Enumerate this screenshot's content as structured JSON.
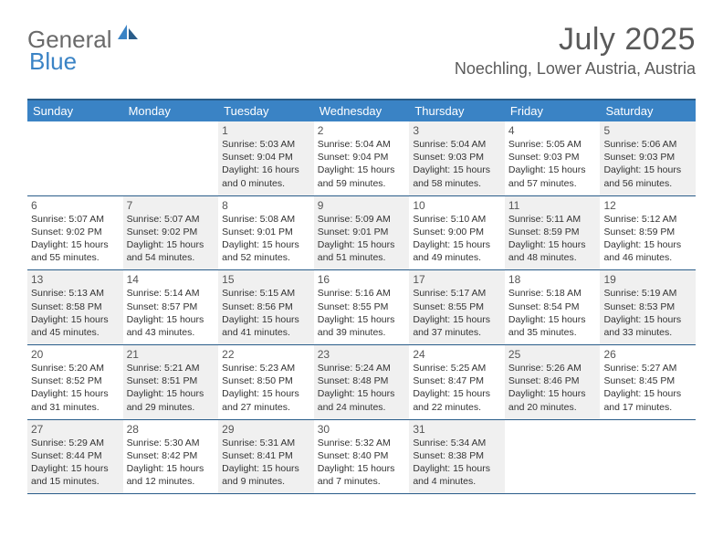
{
  "logo": {
    "text1": "General",
    "text2": "Blue"
  },
  "title": "July 2025",
  "location": "Noechling, Lower Austria, Austria",
  "colors": {
    "header_bg": "#3a83c5",
    "header_border": "#2a5d8a",
    "shaded_bg": "#f0f0f0",
    "logo_gray": "#6a6a6a",
    "logo_blue": "#3a83c5",
    "text_gray": "#5a5a5a"
  },
  "dayNames": [
    "Sunday",
    "Monday",
    "Tuesday",
    "Wednesday",
    "Thursday",
    "Friday",
    "Saturday"
  ],
  "weeks": [
    [
      {
        "empty": true
      },
      {
        "empty": true
      },
      {
        "n": "1",
        "shaded": true,
        "sr": "Sunrise: 5:03 AM",
        "ss": "Sunset: 9:04 PM",
        "dl": "Daylight: 16 hours and 0 minutes."
      },
      {
        "n": "2",
        "sr": "Sunrise: 5:04 AM",
        "ss": "Sunset: 9:04 PM",
        "dl": "Daylight: 15 hours and 59 minutes."
      },
      {
        "n": "3",
        "shaded": true,
        "sr": "Sunrise: 5:04 AM",
        "ss": "Sunset: 9:03 PM",
        "dl": "Daylight: 15 hours and 58 minutes."
      },
      {
        "n": "4",
        "sr": "Sunrise: 5:05 AM",
        "ss": "Sunset: 9:03 PM",
        "dl": "Daylight: 15 hours and 57 minutes."
      },
      {
        "n": "5",
        "shaded": true,
        "sr": "Sunrise: 5:06 AM",
        "ss": "Sunset: 9:03 PM",
        "dl": "Daylight: 15 hours and 56 minutes."
      }
    ],
    [
      {
        "n": "6",
        "sr": "Sunrise: 5:07 AM",
        "ss": "Sunset: 9:02 PM",
        "dl": "Daylight: 15 hours and 55 minutes."
      },
      {
        "n": "7",
        "shaded": true,
        "sr": "Sunrise: 5:07 AM",
        "ss": "Sunset: 9:02 PM",
        "dl": "Daylight: 15 hours and 54 minutes."
      },
      {
        "n": "8",
        "sr": "Sunrise: 5:08 AM",
        "ss": "Sunset: 9:01 PM",
        "dl": "Daylight: 15 hours and 52 minutes."
      },
      {
        "n": "9",
        "shaded": true,
        "sr": "Sunrise: 5:09 AM",
        "ss": "Sunset: 9:01 PM",
        "dl": "Daylight: 15 hours and 51 minutes."
      },
      {
        "n": "10",
        "sr": "Sunrise: 5:10 AM",
        "ss": "Sunset: 9:00 PM",
        "dl": "Daylight: 15 hours and 49 minutes."
      },
      {
        "n": "11",
        "shaded": true,
        "sr": "Sunrise: 5:11 AM",
        "ss": "Sunset: 8:59 PM",
        "dl": "Daylight: 15 hours and 48 minutes."
      },
      {
        "n": "12",
        "sr": "Sunrise: 5:12 AM",
        "ss": "Sunset: 8:59 PM",
        "dl": "Daylight: 15 hours and 46 minutes."
      }
    ],
    [
      {
        "n": "13",
        "shaded": true,
        "sr": "Sunrise: 5:13 AM",
        "ss": "Sunset: 8:58 PM",
        "dl": "Daylight: 15 hours and 45 minutes."
      },
      {
        "n": "14",
        "sr": "Sunrise: 5:14 AM",
        "ss": "Sunset: 8:57 PM",
        "dl": "Daylight: 15 hours and 43 minutes."
      },
      {
        "n": "15",
        "shaded": true,
        "sr": "Sunrise: 5:15 AM",
        "ss": "Sunset: 8:56 PM",
        "dl": "Daylight: 15 hours and 41 minutes."
      },
      {
        "n": "16",
        "sr": "Sunrise: 5:16 AM",
        "ss": "Sunset: 8:55 PM",
        "dl": "Daylight: 15 hours and 39 minutes."
      },
      {
        "n": "17",
        "shaded": true,
        "sr": "Sunrise: 5:17 AM",
        "ss": "Sunset: 8:55 PM",
        "dl": "Daylight: 15 hours and 37 minutes."
      },
      {
        "n": "18",
        "sr": "Sunrise: 5:18 AM",
        "ss": "Sunset: 8:54 PM",
        "dl": "Daylight: 15 hours and 35 minutes."
      },
      {
        "n": "19",
        "shaded": true,
        "sr": "Sunrise: 5:19 AM",
        "ss": "Sunset: 8:53 PM",
        "dl": "Daylight: 15 hours and 33 minutes."
      }
    ],
    [
      {
        "n": "20",
        "sr": "Sunrise: 5:20 AM",
        "ss": "Sunset: 8:52 PM",
        "dl": "Daylight: 15 hours and 31 minutes."
      },
      {
        "n": "21",
        "shaded": true,
        "sr": "Sunrise: 5:21 AM",
        "ss": "Sunset: 8:51 PM",
        "dl": "Daylight: 15 hours and 29 minutes."
      },
      {
        "n": "22",
        "sr": "Sunrise: 5:23 AM",
        "ss": "Sunset: 8:50 PM",
        "dl": "Daylight: 15 hours and 27 minutes."
      },
      {
        "n": "23",
        "shaded": true,
        "sr": "Sunrise: 5:24 AM",
        "ss": "Sunset: 8:48 PM",
        "dl": "Daylight: 15 hours and 24 minutes."
      },
      {
        "n": "24",
        "sr": "Sunrise: 5:25 AM",
        "ss": "Sunset: 8:47 PM",
        "dl": "Daylight: 15 hours and 22 minutes."
      },
      {
        "n": "25",
        "shaded": true,
        "sr": "Sunrise: 5:26 AM",
        "ss": "Sunset: 8:46 PM",
        "dl": "Daylight: 15 hours and 20 minutes."
      },
      {
        "n": "26",
        "sr": "Sunrise: 5:27 AM",
        "ss": "Sunset: 8:45 PM",
        "dl": "Daylight: 15 hours and 17 minutes."
      }
    ],
    [
      {
        "n": "27",
        "shaded": true,
        "sr": "Sunrise: 5:29 AM",
        "ss": "Sunset: 8:44 PM",
        "dl": "Daylight: 15 hours and 15 minutes."
      },
      {
        "n": "28",
        "sr": "Sunrise: 5:30 AM",
        "ss": "Sunset: 8:42 PM",
        "dl": "Daylight: 15 hours and 12 minutes."
      },
      {
        "n": "29",
        "shaded": true,
        "sr": "Sunrise: 5:31 AM",
        "ss": "Sunset: 8:41 PM",
        "dl": "Daylight: 15 hours and 9 minutes."
      },
      {
        "n": "30",
        "sr": "Sunrise: 5:32 AM",
        "ss": "Sunset: 8:40 PM",
        "dl": "Daylight: 15 hours and 7 minutes."
      },
      {
        "n": "31",
        "shaded": true,
        "sr": "Sunrise: 5:34 AM",
        "ss": "Sunset: 8:38 PM",
        "dl": "Daylight: 15 hours and 4 minutes."
      },
      {
        "empty": true
      },
      {
        "empty": true
      }
    ]
  ]
}
